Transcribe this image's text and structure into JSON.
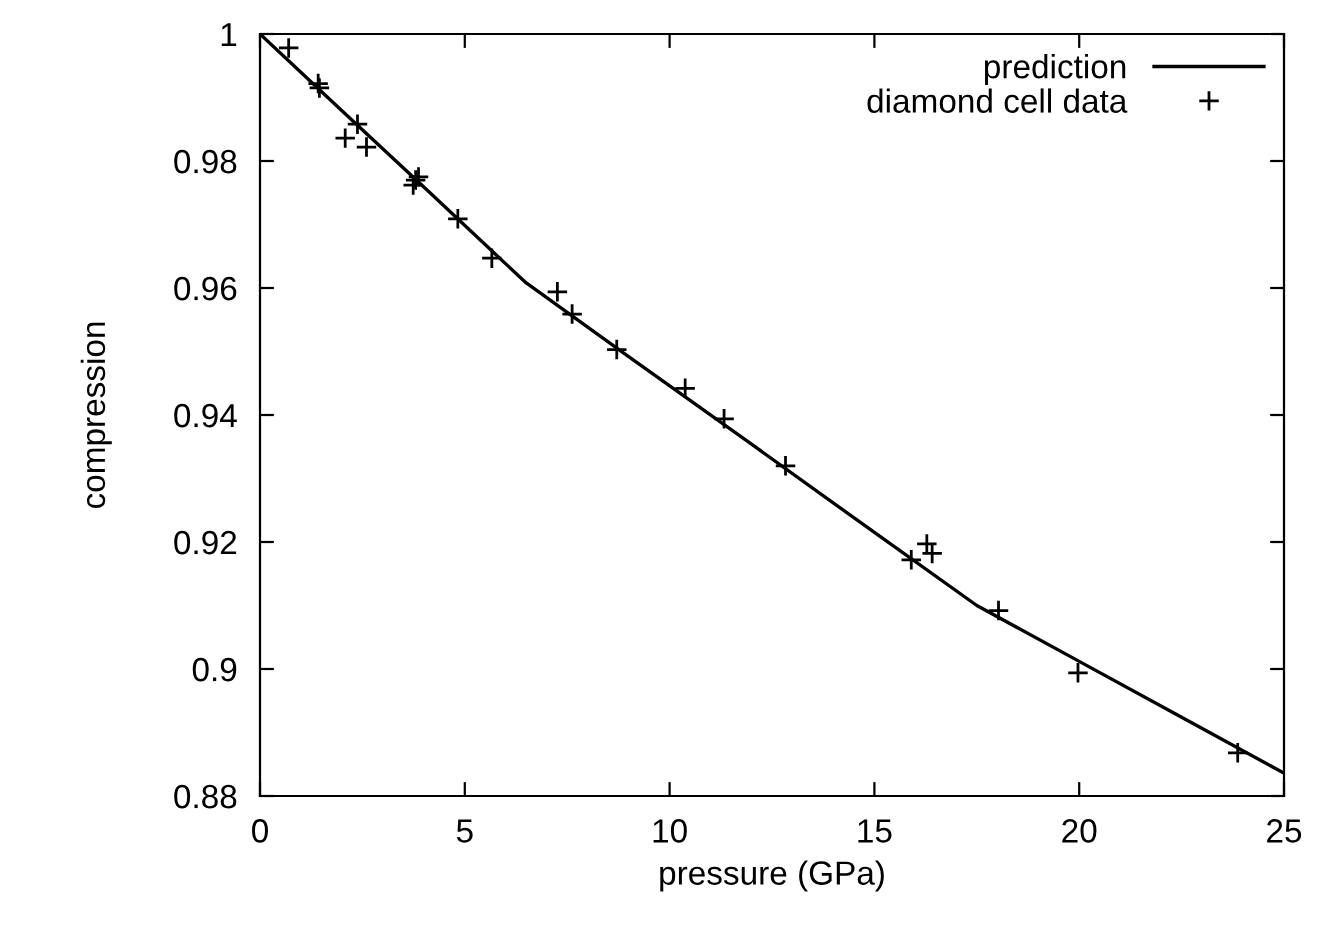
{
  "chart_data": {
    "type": "line",
    "xlabel": "pressure (GPa)",
    "ylabel": "compression",
    "xlim": [
      0,
      25
    ],
    "xticks": [
      0,
      5,
      10,
      15,
      20,
      25
    ],
    "ylim": [
      0.88,
      1
    ],
    "yticks": [
      0.88,
      0.9,
      0.92,
      0.94,
      0.96,
      0.98,
      1
    ],
    "grid": false,
    "legend": "top right",
    "series": [
      {
        "name": "prediction",
        "color": "#000000",
        "line_style": "solid",
        "marker": "none",
        "x": [
          0,
          2,
          4,
          6,
          6.5,
          9,
          12,
          15,
          17.5,
          20,
          22.5,
          25
        ],
        "values": [
          1.0,
          0.9879,
          0.9759,
          0.9638,
          0.9608,
          0.9492,
          0.9354,
          0.9215,
          0.91,
          0.9012,
          0.8924,
          0.8836
        ]
      },
      {
        "name": "diamond cell data",
        "type": "scatter",
        "color": "#000000",
        "marker": "cross",
        "x": [
          0.7,
          1.42,
          1.45,
          2.08,
          2.38,
          2.6,
          3.74,
          3.8,
          3.87,
          4.83,
          5.66,
          7.26,
          7.62,
          8.71,
          10.38,
          11.33,
          12.83,
          15.9,
          16.28,
          16.41,
          18.03,
          19.97,
          23.87
        ],
        "values": [
          0.9978,
          0.9922,
          0.9915,
          0.9836,
          0.9858,
          0.9822,
          0.9762,
          0.977,
          0.9775,
          0.9709,
          0.9647,
          0.9594,
          0.9559,
          0.9503,
          0.9442,
          0.9394,
          0.932,
          0.9172,
          0.9197,
          0.9182,
          0.9092,
          0.8994,
          0.8868
        ]
      }
    ]
  }
}
